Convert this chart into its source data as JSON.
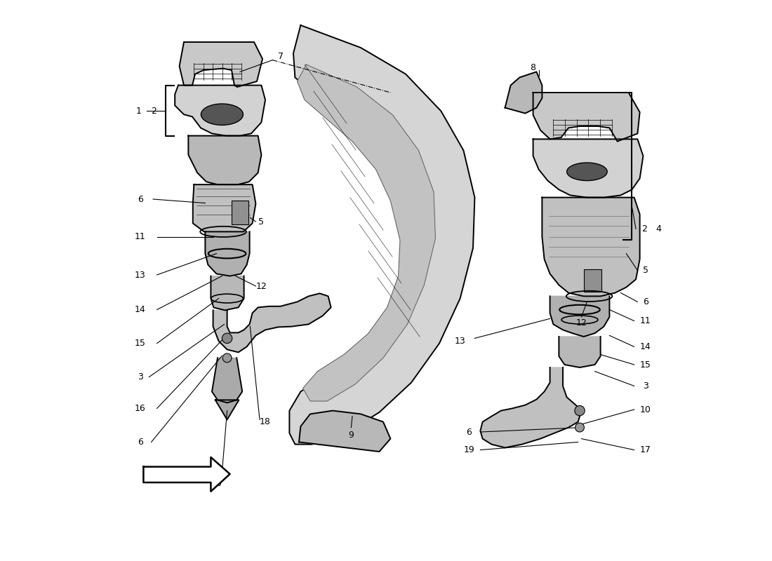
{
  "bg_color": "#ffffff",
  "line_color": "#000000",
  "fig_width": 11.0,
  "fig_height": 8.0,
  "dpi": 100
}
